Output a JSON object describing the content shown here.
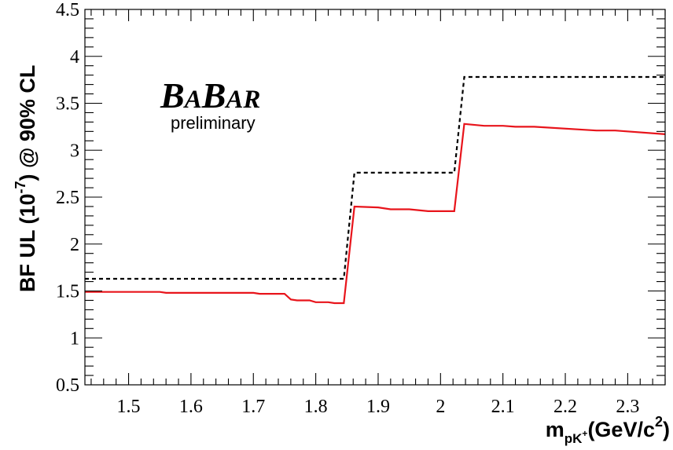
{
  "chart_data": {
    "type": "line",
    "logo": {
      "part1_big": "B",
      "part1_small": "A",
      "part2_big": "B",
      "part2_small": "AR"
    },
    "annotation": "preliminary",
    "xlabel": {
      "main": "m",
      "sub": "pK",
      "sup_sub": "+",
      "unit_pre": "(GeV/c",
      "unit_sup": "2",
      "unit_post": ")"
    },
    "ylabel": {
      "pre": "BF UL (10",
      "sup": "-7",
      "post": ") @ 90% CL"
    },
    "xlim": [
      1.43,
      2.36
    ],
    "ylim": [
      0.5,
      4.5
    ],
    "x_ticks": [
      {
        "v": 1.5,
        "label": "1.5"
      },
      {
        "v": 1.6,
        "label": "1.6"
      },
      {
        "v": 1.7,
        "label": "1.7"
      },
      {
        "v": 1.8,
        "label": "1.8"
      },
      {
        "v": 1.9,
        "label": "1.9"
      },
      {
        "v": 2.0,
        "label": "2"
      },
      {
        "v": 2.1,
        "label": "2.1"
      },
      {
        "v": 2.2,
        "label": "2.2"
      },
      {
        "v": 2.3,
        "label": "2.3"
      }
    ],
    "y_ticks": [
      {
        "v": 0.5,
        "label": "0.5"
      },
      {
        "v": 1.0,
        "label": "1"
      },
      {
        "v": 1.5,
        "label": "1.5"
      },
      {
        "v": 2.0,
        "label": "2"
      },
      {
        "v": 2.5,
        "label": "2.5"
      },
      {
        "v": 3.0,
        "label": "3"
      },
      {
        "v": 3.5,
        "label": "3.5"
      },
      {
        "v": 4.0,
        "label": "4"
      },
      {
        "v": 4.5,
        "label": "4.5"
      }
    ],
    "series": [
      {
        "style": "dashed",
        "color": "#000000",
        "points": [
          [
            1.43,
            1.63
          ],
          [
            1.845,
            1.63
          ],
          [
            1.862,
            2.76
          ],
          [
            2.022,
            2.76
          ],
          [
            2.038,
            3.78
          ],
          [
            2.36,
            3.78
          ]
        ]
      },
      {
        "style": "solid",
        "color": "#e8141b",
        "points": [
          [
            1.43,
            1.49
          ],
          [
            1.55,
            1.49
          ],
          [
            1.56,
            1.48
          ],
          [
            1.7,
            1.48
          ],
          [
            1.71,
            1.47
          ],
          [
            1.75,
            1.47
          ],
          [
            1.76,
            1.41
          ],
          [
            1.77,
            1.4
          ],
          [
            1.79,
            1.4
          ],
          [
            1.8,
            1.38
          ],
          [
            1.82,
            1.38
          ],
          [
            1.83,
            1.37
          ],
          [
            1.845,
            1.37
          ],
          [
            1.862,
            2.4
          ],
          [
            1.9,
            2.39
          ],
          [
            1.92,
            2.37
          ],
          [
            1.95,
            2.37
          ],
          [
            1.98,
            2.35
          ],
          [
            2.022,
            2.35
          ],
          [
            2.038,
            3.28
          ],
          [
            2.07,
            3.26
          ],
          [
            2.1,
            3.26
          ],
          [
            2.12,
            3.25
          ],
          [
            2.15,
            3.25
          ],
          [
            2.25,
            3.21
          ],
          [
            2.28,
            3.21
          ],
          [
            2.36,
            3.17
          ]
        ]
      }
    ]
  }
}
